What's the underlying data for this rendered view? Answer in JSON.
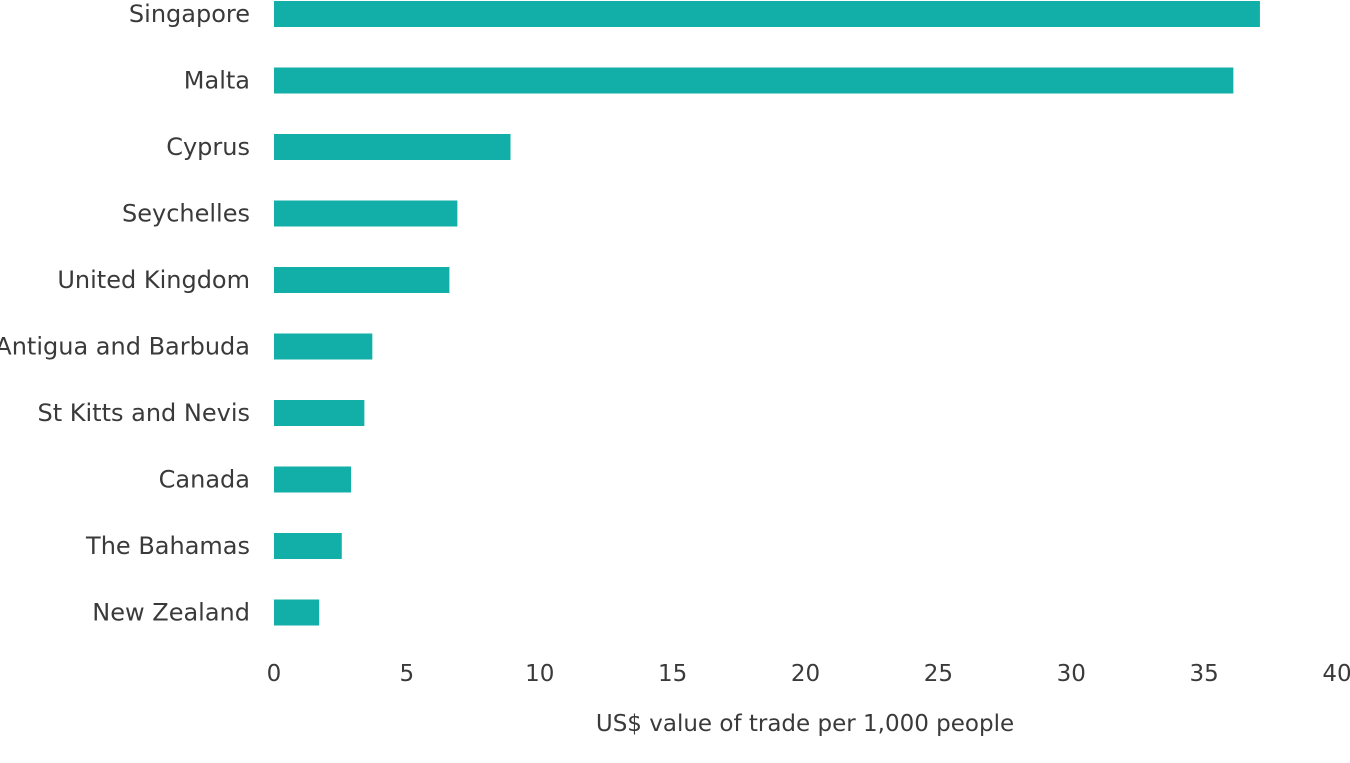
{
  "chart_data": {
    "type": "bar",
    "orientation": "horizontal",
    "categories": [
      "Singapore",
      "Malta",
      "Cyprus",
      "Seychelles",
      "United Kingdom",
      "Antigua and Barbuda",
      "St Kitts and Nevis",
      "Canada",
      "The Bahamas",
      "New Zealand"
    ],
    "values": [
      37.1,
      36.1,
      8.9,
      6.9,
      6.6,
      3.7,
      3.4,
      2.9,
      2.55,
      1.7
    ],
    "xlabel": "US$ value of trade per 1,000 people",
    "ylabel": "",
    "title": "",
    "xlim": [
      0,
      40
    ],
    "xticks": [
      0,
      5,
      10,
      15,
      20,
      25,
      30,
      35,
      40
    ],
    "grid": false,
    "bar_color": "#12afa8",
    "text_color": "#3a3a3a"
  }
}
